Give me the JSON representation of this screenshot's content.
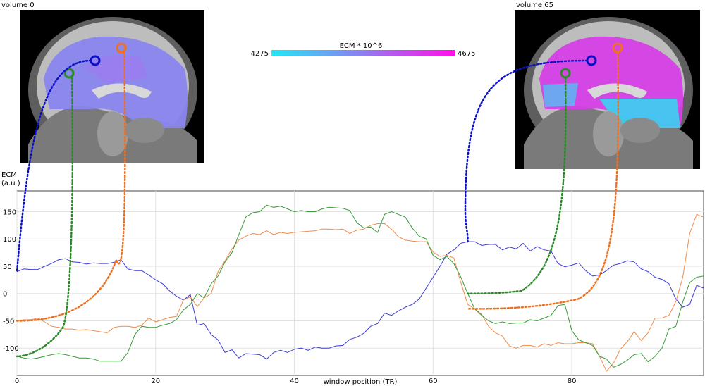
{
  "panels": [
    {
      "title": "volume 0",
      "id": "vol0"
    },
    {
      "title": "volume 65",
      "id": "vol65"
    }
  ],
  "colorbar": {
    "label": "ECM * 10^6",
    "min_label": "4275",
    "max_label": "4675",
    "colors": [
      "#22e6f5",
      "#8f7df0",
      "#ff10e8"
    ]
  },
  "markers": [
    {
      "name": "blue-roi-marker",
      "color": "#0a10c8"
    },
    {
      "name": "orange-roi-marker",
      "color": "#f07020"
    },
    {
      "name": "green-roi-marker",
      "color": "#2a8a2a"
    }
  ],
  "chart_data": {
    "type": "line",
    "title": "",
    "xlabel": "window position (TR)",
    "ylabel": "ECM\n(a.u.)",
    "xlim": [
      0,
      99
    ],
    "ylim": [
      -150,
      188
    ],
    "xticks": [
      0,
      20,
      40,
      60,
      80
    ],
    "yticks": [
      -100,
      -50,
      0,
      50,
      100,
      150
    ],
    "grid": true,
    "x": [
      0,
      1,
      2,
      3,
      4,
      5,
      6,
      7,
      8,
      9,
      10,
      11,
      12,
      13,
      14,
      15,
      16,
      17,
      18,
      19,
      20,
      21,
      22,
      23,
      24,
      25,
      26,
      27,
      28,
      29,
      30,
      31,
      32,
      33,
      34,
      35,
      36,
      37,
      38,
      39,
      40,
      41,
      42,
      43,
      44,
      45,
      46,
      47,
      48,
      49,
      50,
      51,
      52,
      53,
      54,
      55,
      56,
      57,
      58,
      59,
      60,
      61,
      62,
      63,
      64,
      65,
      66,
      67,
      68,
      69,
      70,
      71,
      72,
      73,
      74,
      75,
      76,
      77,
      78,
      79,
      80,
      81,
      82,
      83,
      84,
      85,
      86,
      87,
      88,
      89,
      90,
      91,
      92,
      93,
      94,
      95,
      96,
      97,
      98,
      99
    ],
    "series": [
      {
        "color": "#3b3bd8",
        "values": [
          40,
          45,
          44,
          44,
          50,
          55,
          62,
          64,
          58,
          57,
          54,
          56,
          55,
          55,
          57,
          62,
          45,
          42,
          42,
          34,
          25,
          18,
          5,
          -5,
          -12,
          -2,
          -58,
          -55,
          -75,
          -85,
          -108,
          -103,
          -118,
          -110,
          -111,
          -112,
          -120,
          -108,
          -104,
          -108,
          -102,
          -100,
          -104,
          -98,
          -100,
          -100,
          -96,
          -95,
          -84,
          -80,
          -73,
          -60,
          -55,
          -36,
          -40,
          -32,
          -25,
          -20,
          -10,
          10,
          30,
          50,
          72,
          80,
          92,
          95,
          95,
          88,
          90,
          90,
          80,
          85,
          82,
          92,
          78,
          86,
          80,
          78,
          55,
          49,
          52,
          56,
          42,
          32,
          34,
          42,
          52,
          55,
          60,
          58,
          45,
          40,
          30,
          26,
          18,
          -10,
          -25,
          -20,
          15,
          10
        ]
      },
      {
        "color": "#f08c4a",
        "values": [
          -50,
          -48,
          -48,
          -45,
          -52,
          -60,
          -62,
          -65,
          -65,
          -67,
          -66,
          -68,
          -70,
          -72,
          -62,
          -60,
          -60,
          -62,
          -58,
          -45,
          -52,
          -48,
          -44,
          -42,
          -12,
          -6,
          -24,
          -8,
          0,
          40,
          60,
          82,
          98,
          105,
          110,
          108,
          115,
          108,
          112,
          110,
          112,
          113,
          114,
          115,
          118,
          118,
          117,
          118,
          110,
          116,
          118,
          125,
          128,
          128,
          118,
          104,
          98,
          96,
          95,
          95,
          76,
          68,
          70,
          65,
          20,
          -20,
          -28,
          -38,
          -60,
          -72,
          -78,
          -96,
          -100,
          -95,
          -95,
          -98,
          -92,
          -95,
          -90,
          -92,
          -92,
          -90,
          -90,
          -92,
          -115,
          -142,
          -128,
          -102,
          -88,
          -70,
          -86,
          -72,
          -45,
          -45,
          -40,
          -15,
          30,
          110,
          145,
          140
        ]
      },
      {
        "color": "#3a9a3a",
        "values": [
          -115,
          -118,
          -120,
          -118,
          -115,
          -112,
          -110,
          -112,
          -115,
          -118,
          -118,
          -120,
          -124,
          -124,
          -124,
          -124,
          -108,
          -75,
          -60,
          -62,
          -62,
          -58,
          -55,
          -48,
          -30,
          -20,
          0,
          -8,
          18,
          32,
          58,
          75,
          108,
          140,
          148,
          150,
          162,
          158,
          160,
          155,
          150,
          152,
          150,
          150,
          155,
          158,
          157,
          156,
          152,
          130,
          120,
          122,
          112,
          145,
          150,
          145,
          140,
          120,
          105,
          100,
          70,
          62,
          68,
          55,
          30,
          0,
          -28,
          -40,
          -50,
          -55,
          -52,
          -55,
          -54,
          -54,
          -48,
          -50,
          -45,
          -40,
          -22,
          -20,
          -68,
          -85,
          -90,
          -95,
          -115,
          -120,
          -135,
          -130,
          -122,
          -112,
          -110,
          -125,
          -115,
          -100,
          -65,
          -60,
          -15,
          20,
          30,
          32
        ]
      }
    ]
  }
}
